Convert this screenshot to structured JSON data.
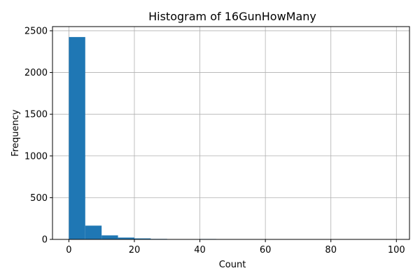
{
  "chart_data": {
    "type": "bar",
    "title": "Histogram of 16GunHowMany",
    "xlabel": "Count",
    "ylabel": "Frequency",
    "xlim": [
      -5,
      104
    ],
    "ylim": [
      0,
      2550
    ],
    "xticks": [
      0,
      20,
      40,
      60,
      80,
      100
    ],
    "yticks": [
      0,
      500,
      1000,
      1500,
      2000,
      2500
    ],
    "grid": true,
    "color": "#1f77b4",
    "bins": [
      {
        "start": 0,
        "end": 5,
        "value": 2425
      },
      {
        "start": 5,
        "end": 10,
        "value": 165
      },
      {
        "start": 10,
        "end": 15,
        "value": 48
      },
      {
        "start": 15,
        "end": 20,
        "value": 22
      },
      {
        "start": 20,
        "end": 25,
        "value": 12
      },
      {
        "start": 25,
        "end": 30,
        "value": 6
      },
      {
        "start": 30,
        "end": 35,
        "value": 4
      },
      {
        "start": 35,
        "end": 40,
        "value": 1
      },
      {
        "start": 40,
        "end": 45,
        "value": 5
      },
      {
        "start": 45,
        "end": 50,
        "value": 1
      },
      {
        "start": 50,
        "end": 55,
        "value": 1
      },
      {
        "start": 55,
        "end": 60,
        "value": 1
      },
      {
        "start": 60,
        "end": 65,
        "value": 1
      },
      {
        "start": 65,
        "end": 70,
        "value": 1
      },
      {
        "start": 70,
        "end": 75,
        "value": 1
      },
      {
        "start": 75,
        "end": 80,
        "value": 1
      },
      {
        "start": 80,
        "end": 85,
        "value": 1
      },
      {
        "start": 85,
        "end": 90,
        "value": 1
      },
      {
        "start": 90,
        "end": 95,
        "value": 1
      },
      {
        "start": 95,
        "end": 100,
        "value": 2
      }
    ]
  }
}
